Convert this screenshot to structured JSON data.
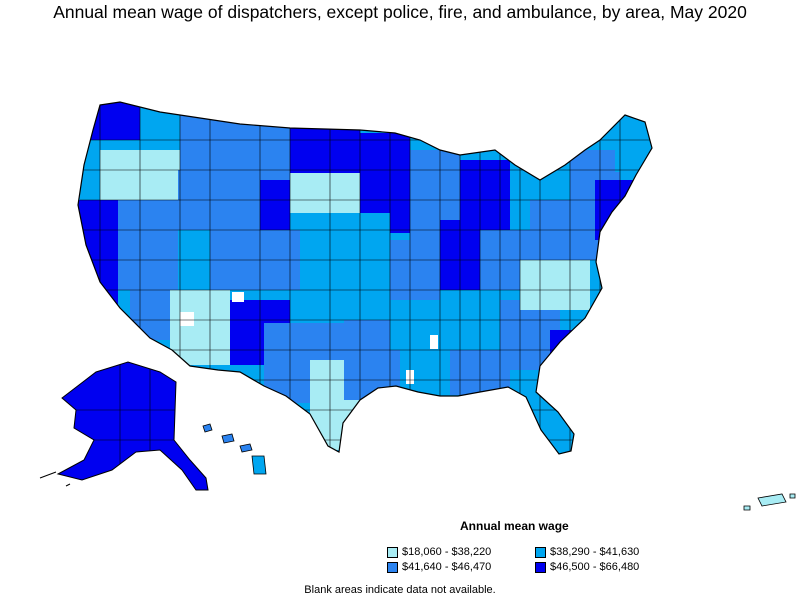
{
  "title": "Annual mean wage of dispatchers, except police, fire, and ambulance, by area, May 2020",
  "legend": {
    "title": "Annual mean wage",
    "items": [
      {
        "label": "$18,060 - $38,220",
        "color": "#a8ecf4"
      },
      {
        "label": "$38,290 - $41,630",
        "color": "#00a6f0"
      },
      {
        "label": "$41,640 - $46,470",
        "color": "#2b83f0"
      },
      {
        "label": "$46,500 - $66,480",
        "color": "#0000f0"
      }
    ]
  },
  "footnote": "Blank areas indicate data not available.",
  "colors": {
    "outline": "#000000",
    "no_data": "#ffffff"
  }
}
